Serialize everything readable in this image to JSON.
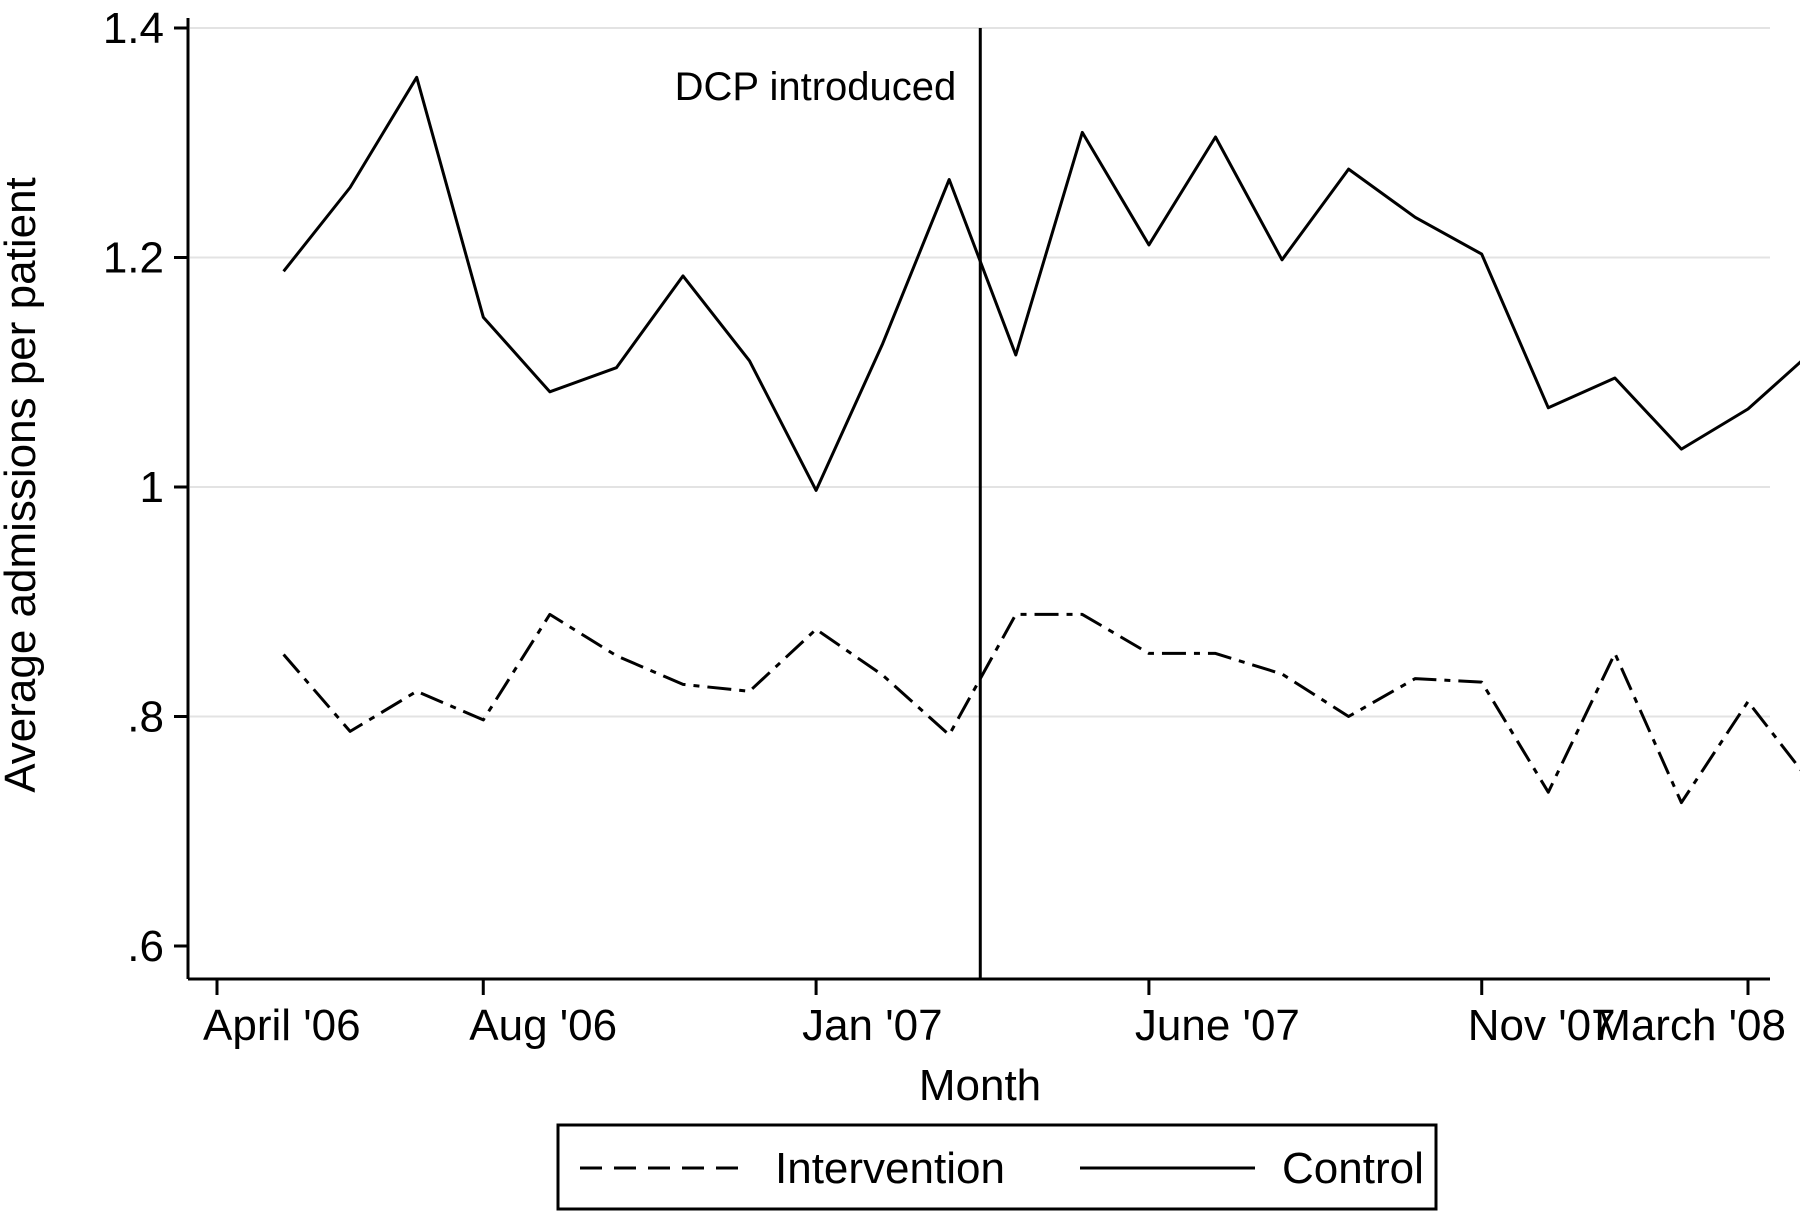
{
  "chart_data": {
    "type": "line",
    "title": "",
    "xlabel": "Month",
    "ylabel": "Average  admissions per patient",
    "ylim": [
      0.6,
      1.4
    ],
    "y_ticks": [
      {
        "value": 0.6,
        "label": ".6"
      },
      {
        "value": 0.8,
        "label": ".8"
      },
      {
        "value": 1.0,
        "label": "1"
      },
      {
        "value": 1.2,
        "label": "1.2"
      },
      {
        "value": 1.4,
        "label": "1.4"
      }
    ],
    "x_ticks": [
      {
        "value": "2006-04",
        "label": "April '06"
      },
      {
        "value": "2006-08",
        "label": "Aug '06"
      },
      {
        "value": "2007-01",
        "label": "Jan '07"
      },
      {
        "value": "2007-06",
        "label": "June '07"
      },
      {
        "value": "2007-11",
        "label": "Nov '07"
      },
      {
        "value": "2008-03",
        "label": "March '08"
      }
    ],
    "x": [
      "2006-05",
      "2006-06",
      "2006-07",
      "2006-08",
      "2006-09",
      "2006-10",
      "2006-11",
      "2006-12",
      "2007-01",
      "2007-02",
      "2007-03",
      "2007-04",
      "2007-05",
      "2007-06",
      "2007-07",
      "2007-08",
      "2007-09",
      "2007-10",
      "2007-11",
      "2007-12",
      "2008-01",
      "2008-02",
      "2008-03",
      "2008-04"
    ],
    "series": [
      {
        "name": "Intervention",
        "style": "dashed",
        "values": [
          0.854,
          0.787,
          0.822,
          0.797,
          0.889,
          0.853,
          0.828,
          0.822,
          0.876,
          0.836,
          0.784,
          0.889,
          0.889,
          0.855,
          0.855,
          0.837,
          0.8,
          0.833,
          0.83,
          0.734,
          0.855,
          0.725,
          0.813,
          0.738
        ]
      },
      {
        "name": "Control",
        "style": "solid",
        "values": [
          1.188,
          1.261,
          1.357,
          1.148,
          1.083,
          1.104,
          1.184,
          1.11,
          0.997,
          1.125,
          1.268,
          1.115,
          1.309,
          1.211,
          1.305,
          1.198,
          1.277,
          1.235,
          1.203,
          1.069,
          1.095,
          1.033,
          1.068,
          1.12
        ]
      }
    ],
    "annotations": [
      {
        "type": "vline",
        "x": "2007-03-15",
        "label": "DCP introduced"
      }
    ],
    "grid": true,
    "legend_position": "bottom"
  }
}
